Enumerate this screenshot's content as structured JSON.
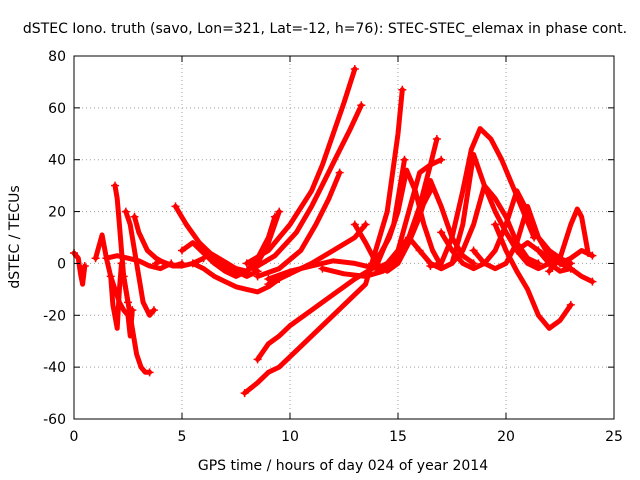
{
  "chart_data": {
    "type": "scatter",
    "title": "dSTEC Iono. truth (savo, Lon=321, Lat=-12, h=76): STEC-STEC_elemax in phase cont.",
    "xlabel": "GPS time / hours of day 024 of year 2014",
    "ylabel": "dSTEC  / TECUs",
    "xlim": [
      0,
      25
    ],
    "ylim": [
      -60,
      80
    ],
    "xticks": [
      0,
      5,
      10,
      15,
      20,
      25
    ],
    "yticks": [
      -60,
      -40,
      -20,
      0,
      20,
      40,
      60,
      80
    ],
    "grid": true,
    "marker": "plus",
    "color": "#ff0000",
    "series": [
      {
        "x": [
          0.0,
          0.2,
          0.3,
          0.4,
          0.5
        ],
        "y": [
          4,
          2,
          -4,
          -8,
          -1
        ]
      },
      {
        "x": [
          1.0,
          1.3,
          1.5,
          1.7,
          1.8,
          2.0,
          2.1,
          2.2
        ],
        "y": [
          2,
          11,
          2,
          -5,
          -16,
          -25,
          -10,
          0
        ]
      },
      {
        "x": [
          1.9,
          2.0,
          2.1,
          2.2,
          2.3,
          2.4,
          2.5
        ],
        "y": [
          30,
          25,
          15,
          5,
          -5,
          -10,
          -15
        ]
      },
      {
        "x": [
          1.7,
          1.9,
          2.1,
          2.3,
          2.5,
          2.6,
          2.7
        ],
        "y": [
          -5,
          -10,
          -15,
          -18,
          -20,
          -28,
          -18
        ]
      },
      {
        "x": [
          2.3,
          2.5,
          2.7,
          2.9,
          3.1,
          3.3,
          3.5
        ],
        "y": [
          -5,
          -15,
          -25,
          -35,
          -40,
          -42,
          -42
        ]
      },
      {
        "x": [
          2.4,
          2.6,
          2.8,
          3.0,
          3.2,
          3.5,
          3.7
        ],
        "y": [
          20,
          15,
          5,
          -5,
          -15,
          -20,
          -18
        ]
      },
      {
        "x": [
          1.5,
          2.0,
          2.5,
          3.0,
          3.5,
          4.0,
          4.5
        ],
        "y": [
          2,
          3,
          2,
          1,
          -1,
          -2,
          0
        ]
      },
      {
        "x": [
          3.8,
          4.0,
          4.3,
          4.6,
          5.0
        ],
        "y": [
          0,
          1,
          0,
          -1,
          0
        ]
      },
      {
        "x": [
          2.8,
          3.0,
          3.4,
          3.8,
          4.2,
          4.6,
          5.0,
          5.5,
          6.0
        ],
        "y": [
          18,
          12,
          5,
          2,
          0,
          -1,
          -1,
          0,
          2
        ]
      },
      {
        "x": [
          4.7,
          5.2,
          5.8,
          6.3,
          6.9,
          7.5,
          8.0,
          8.5,
          9.0,
          9.5
        ],
        "y": [
          22,
          15,
          8,
          4,
          1,
          -2,
          -3,
          0,
          8,
          20
        ]
      },
      {
        "x": [
          5.0,
          5.5,
          6.0,
          6.5,
          7.0,
          7.5,
          8.0,
          8.5,
          9.0,
          9.3
        ],
        "y": [
          5,
          8,
          4,
          0,
          -3,
          -5,
          -3,
          2,
          10,
          18
        ]
      },
      {
        "x": [
          5.5,
          6.0,
          6.5,
          7.0,
          7.5,
          8.0,
          8.5,
          9.0,
          9.5
        ],
        "y": [
          0,
          -2,
          -5,
          -7,
          -9,
          -10,
          -11,
          -9,
          -6
        ]
      },
      {
        "x": [
          6.0,
          6.5,
          7.0,
          7.5,
          8.0,
          8.5
        ],
        "y": [
          5,
          2,
          -1,
          -3,
          -5,
          -3
        ]
      },
      {
        "x": [
          8.0,
          9.0,
          10.0,
          11.0,
          11.5,
          12.0,
          12.5,
          13.0
        ],
        "y": [
          0,
          5,
          15,
          28,
          38,
          50,
          62,
          75
        ]
      },
      {
        "x": [
          8.3,
          9.3,
          10.3,
          11.0,
          11.6,
          12.2,
          12.8,
          13.3
        ],
        "y": [
          -2,
          3,
          12,
          22,
          32,
          42,
          52,
          61
        ]
      },
      {
        "x": [
          8.5,
          9.5,
          10.5,
          11.2,
          11.8,
          12.3
        ],
        "y": [
          -5,
          -2,
          5,
          15,
          25,
          35
        ]
      },
      {
        "x": [
          9.0,
          10.0,
          11.0,
          12.0,
          13.0,
          13.5
        ],
        "y": [
          -8,
          -4,
          0,
          5,
          10,
          15
        ]
      },
      {
        "x": [
          7.9,
          8.5,
          9.0,
          9.5,
          10.5,
          11.5,
          12.5,
          13.5,
          14.5,
          15.0,
          15.2
        ],
        "y": [
          -50,
          -46,
          -42,
          -40,
          -32,
          -24,
          -16,
          -8,
          20,
          50,
          67
        ]
      },
      {
        "x": [
          8.5,
          9.0,
          9.5,
          10.0,
          11.0,
          12.0,
          13.0,
          14.0,
          14.8,
          15.3
        ],
        "y": [
          -37,
          -31,
          -28,
          -24,
          -18,
          -12,
          -6,
          -1,
          15,
          40
        ]
      },
      {
        "x": [
          9.0,
          10.0,
          11.0,
          12.0,
          13.0,
          14.0,
          14.5,
          15.0,
          15.5,
          16.0,
          16.5,
          16.8
        ],
        "y": [
          -6,
          -3,
          -1,
          1,
          0,
          -2,
          0,
          5,
          10,
          22,
          38,
          48
        ]
      },
      {
        "x": [
          13.0,
          13.5,
          14.0,
          14.5,
          15.0,
          15.5,
          16.0,
          16.5
        ],
        "y": [
          15,
          8,
          0,
          -3,
          0,
          8,
          20,
          28
        ]
      },
      {
        "x": [
          11.5,
          12.5,
          13.5,
          14.3,
          15.0,
          15.5,
          16.0,
          16.5,
          17.0
        ],
        "y": [
          -2,
          -4,
          -5,
          -3,
          5,
          20,
          35,
          38,
          40
        ]
      },
      {
        "x": [
          13.8,
          14.2,
          14.6,
          15.0,
          15.4,
          15.8,
          16.2,
          16.6,
          17.0
        ],
        "y": [
          0,
          4,
          10,
          20,
          36,
          28,
          15,
          5,
          -1
        ]
      },
      {
        "x": [
          14.5,
          15.0,
          15.5,
          16.0,
          16.5,
          17.0,
          17.5,
          18.0,
          18.5
        ],
        "y": [
          -1,
          2,
          8,
          18,
          32,
          22,
          10,
          3,
          0
        ]
      },
      {
        "x": [
          15.5,
          16.0,
          16.5,
          17.0,
          17.5,
          18.0,
          18.5,
          19.0,
          19.5,
          20.0,
          20.5,
          21.0,
          21.5
        ],
        "y": [
          10,
          5,
          0,
          -2,
          0,
          5,
          15,
          30,
          25,
          18,
          8,
          2,
          0
        ]
      },
      {
        "x": [
          16.0,
          16.5,
          17.0,
          17.5,
          18.0,
          18.5,
          19.0,
          19.5,
          20.0,
          20.5,
          21.0,
          21.5,
          22.0
        ],
        "y": [
          5,
          0,
          -2,
          0,
          15,
          42,
          30,
          20,
          12,
          5,
          0,
          -2,
          0
        ]
      },
      {
        "x": [
          16.5,
          17.0,
          17.5,
          18.0,
          18.4,
          18.8,
          19.3,
          19.8,
          20.3,
          20.8,
          21.3
        ],
        "y": [
          -1,
          0,
          10,
          28,
          44,
          52,
          48,
          40,
          30,
          20,
          10
        ]
      },
      {
        "x": [
          17.0,
          17.5,
          18.0,
          18.5,
          19.0,
          19.5,
          20.0,
          20.5,
          21.0,
          21.5,
          22.0,
          22.5,
          23.0
        ],
        "y": [
          12,
          5,
          0,
          -2,
          0,
          5,
          15,
          28,
          20,
          10,
          5,
          2,
          0
        ]
      },
      {
        "x": [
          18.5,
          19.0,
          19.5,
          20.0,
          20.5,
          21.0,
          21.5,
          22.0,
          22.5,
          23.0
        ],
        "y": [
          5,
          0,
          -2,
          0,
          8,
          22,
          10,
          3,
          0,
          -2
        ]
      },
      {
        "x": [
          19.5,
          20.0,
          20.5,
          21.0,
          21.5,
          22.0,
          22.5,
          23.0
        ],
        "y": [
          15,
          5,
          -3,
          -10,
          -20,
          -25,
          -22,
          -16
        ]
      },
      {
        "x": [
          20.5,
          21.0,
          21.5,
          22.0,
          22.5,
          23.0
        ],
        "y": [
          5,
          8,
          5,
          0,
          -3,
          -2
        ]
      },
      {
        "x": [
          21.5,
          22.0,
          22.5,
          23.0,
          23.5,
          24.0
        ],
        "y": [
          5,
          2,
          0,
          -2,
          -5,
          -7
        ]
      },
      {
        "x": [
          22.0,
          22.5,
          23.0,
          23.3,
          23.5,
          23.8
        ],
        "y": [
          -3,
          2,
          15,
          21,
          18,
          4
        ]
      },
      {
        "x": [
          22.5,
          23.0,
          23.5,
          24.0
        ],
        "y": [
          0,
          2,
          5,
          3
        ]
      }
    ]
  }
}
